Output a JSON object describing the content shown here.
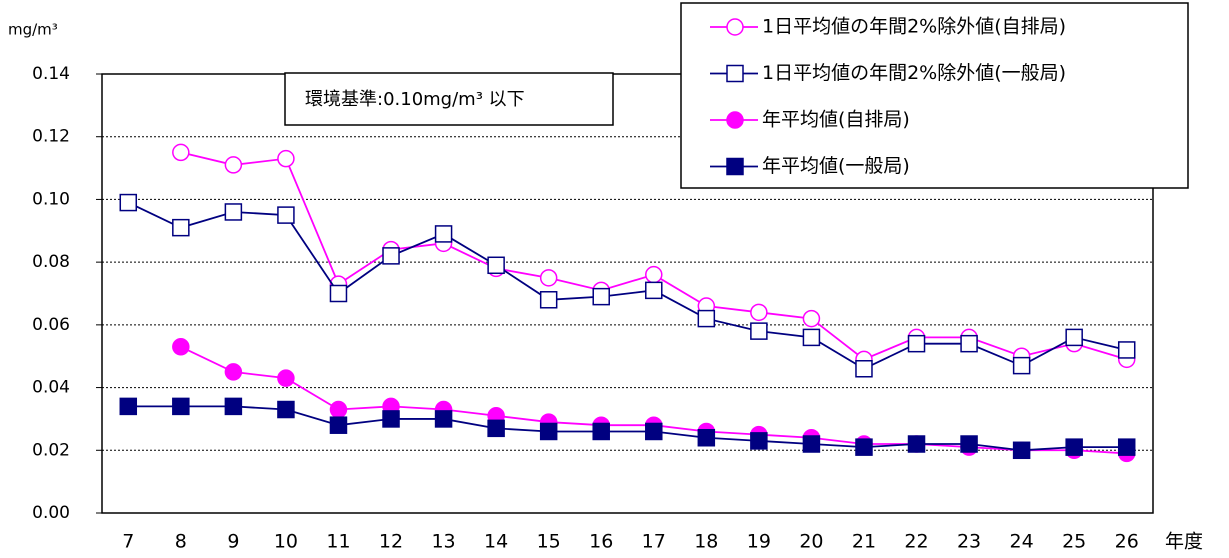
{
  "chart_data": {
    "type": "line",
    "y_label": "mg/m³",
    "x_label": "年度",
    "annotation": "環境基準:0.10mg/m³ 以下",
    "categories": [
      "7",
      "8",
      "9",
      "10",
      "11",
      "12",
      "13",
      "14",
      "15",
      "16",
      "17",
      "18",
      "19",
      "20",
      "21",
      "22",
      "23",
      "24",
      "25",
      "26"
    ],
    "series": [
      {
        "name": "1日平均値の年間2%除外値(自排局)",
        "color": "#ff00ff",
        "marker": "circle",
        "filled": false,
        "values": [
          null,
          0.115,
          0.111,
          0.113,
          0.073,
          0.084,
          0.086,
          0.078,
          0.075,
          0.071,
          0.076,
          0.066,
          0.064,
          0.062,
          0.049,
          0.056,
          0.056,
          0.05,
          0.054,
          0.049
        ]
      },
      {
        "name": "1日平均値の年間2%除外値(一般局)",
        "color": "#000080",
        "marker": "square",
        "filled": false,
        "values": [
          0.099,
          0.091,
          0.096,
          0.095,
          0.07,
          0.082,
          0.089,
          0.079,
          0.068,
          0.069,
          0.071,
          0.062,
          0.058,
          0.056,
          0.046,
          0.054,
          0.054,
          0.047,
          0.056,
          0.052
        ]
      },
      {
        "name": "年平均値(自排局)",
        "color": "#ff00ff",
        "marker": "circle",
        "filled": true,
        "values": [
          null,
          0.053,
          0.045,
          0.043,
          0.033,
          0.034,
          0.033,
          0.031,
          0.029,
          0.028,
          0.028,
          0.026,
          0.025,
          0.024,
          0.022,
          0.022,
          0.021,
          0.02,
          0.02,
          0.019
        ]
      },
      {
        "name": "年平均値(一般局)",
        "color": "#000080",
        "marker": "square",
        "filled": true,
        "values": [
          0.034,
          0.034,
          0.034,
          0.033,
          0.028,
          0.03,
          0.03,
          0.027,
          0.026,
          0.026,
          0.026,
          0.024,
          0.023,
          0.022,
          0.021,
          0.022,
          0.022,
          0.02,
          0.021,
          0.021
        ]
      }
    ],
    "ylim": [
      0,
      0.14
    ],
    "yticks": [
      {
        "value": 0,
        "label": "0.00"
      },
      0.02,
      0.04,
      0.06,
      0.08,
      {
        "value": 0.1,
        "label": "0.10"
      },
      0.12,
      0.14
    ],
    "grid": true,
    "legend": "top-right"
  }
}
